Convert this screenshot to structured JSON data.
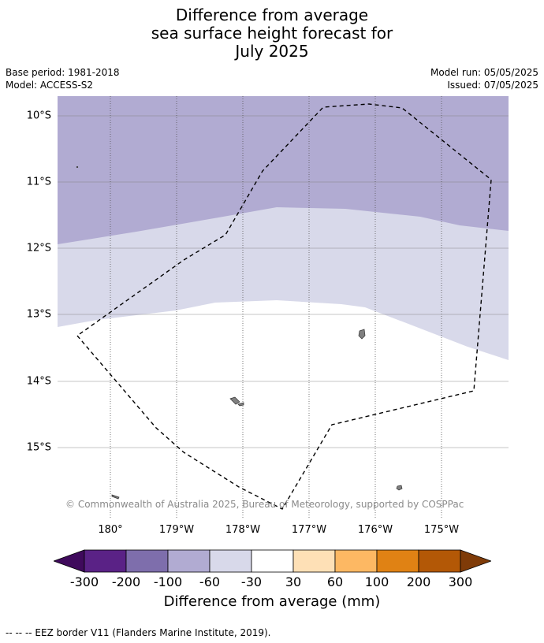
{
  "title": {
    "line1": "Difference from average",
    "line2": "sea surface height forecast for",
    "line3": "July 2025"
  },
  "meta": {
    "base_period": "Base period: 1981-2018",
    "model": "Model: ACCESS-S2",
    "model_run": "Model run: 05/05/2025",
    "issued": "Issued: 07/05/2025"
  },
  "map": {
    "lat_labels": [
      "10°S",
      "11°S",
      "12°S",
      "13°S",
      "14°S",
      "15°S"
    ],
    "lon_labels": [
      "180°",
      "179°W",
      "178°W",
      "177°W",
      "176°W",
      "175°W"
    ],
    "copyright": "© Commonwealth of Australia 2025, Bureau of Meteorology, supported by COSPPac",
    "zone_colors": {
      "-100_to_-60": "#b1abd2",
      "-60_to_-30": "#d8d9ea",
      "-30_to_30": "#ffffff"
    },
    "eez_color": "#000000",
    "land_color": "#808080"
  },
  "colorbar": {
    "ticks": [
      "-300",
      "-200",
      "-100",
      "-60",
      "-30",
      "30",
      "60",
      "100",
      "200",
      "300"
    ],
    "colors": [
      "#3f0a5c",
      "#5a2286",
      "#7e6eac",
      "#b1abd2",
      "#d8d9ea",
      "#ffffff",
      "#fee0b6",
      "#fdb863",
      "#e08214",
      "#b35806",
      "#7f3b08"
    ],
    "label": "Difference from average (mm)"
  },
  "footer": {
    "legend": "--  --  -- EEZ border V11 (Flanders Marine Institute, 2019)."
  }
}
